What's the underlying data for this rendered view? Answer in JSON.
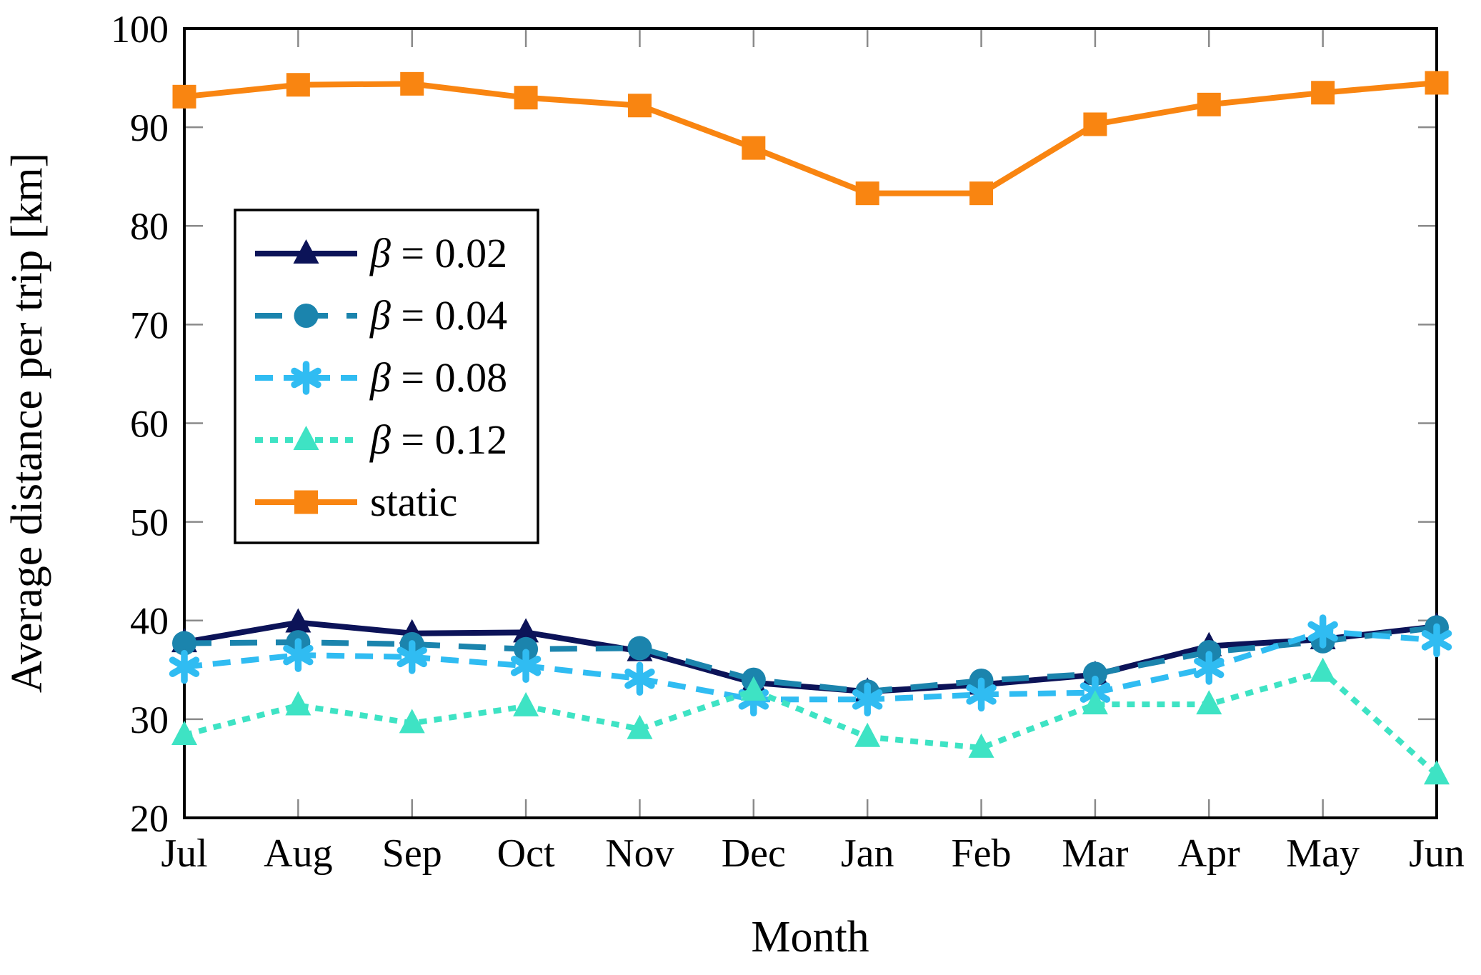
{
  "chart_data": {
    "type": "line",
    "title": "",
    "xlabel": "Month",
    "ylabel": "Average distance per trip [km]",
    "categories": [
      "Jul",
      "Aug",
      "Sep",
      "Oct",
      "Nov",
      "Dec",
      "Jan",
      "Feb",
      "Mar",
      "Apr",
      "May",
      "Jun"
    ],
    "ylim": [
      20,
      100
    ],
    "yticks": [
      20,
      30,
      40,
      50,
      60,
      70,
      80,
      90,
      100
    ],
    "grid": false,
    "legend_position": "upper-left-inside",
    "series": [
      {
        "name": "β = 0.02",
        "color": "#0c1358",
        "line_style": "solid",
        "marker": "triangle",
        "values": [
          37.8,
          39.8,
          38.7,
          38.8,
          36.9,
          33.7,
          32.8,
          33.5,
          34.5,
          37.4,
          38.1,
          39.4
        ]
      },
      {
        "name": "β = 0.04",
        "color": "#1b84ad",
        "line_style": "long-dash",
        "marker": "circle",
        "values": [
          37.7,
          37.8,
          37.6,
          37.1,
          37.2,
          34.0,
          32.8,
          33.9,
          34.6,
          36.8,
          37.9,
          39.3
        ]
      },
      {
        "name": "β = 0.08",
        "color": "#30bcf2",
        "line_style": "dash",
        "marker": "asterisk",
        "values": [
          35.3,
          36.5,
          36.3,
          35.4,
          34.1,
          32.0,
          32.0,
          32.5,
          32.7,
          35.2,
          38.9,
          38.0
        ]
      },
      {
        "name": "β = 0.12",
        "color": "#3ee3c4",
        "line_style": "dotted",
        "marker": "triangle",
        "values": [
          28.4,
          31.4,
          29.6,
          31.3,
          29.0,
          32.9,
          28.2,
          27.1,
          31.5,
          31.5,
          34.8,
          24.4
        ]
      },
      {
        "name": "static",
        "color": "#f98511",
        "line_style": "solid",
        "marker": "square",
        "values": [
          93.1,
          94.3,
          94.4,
          93.0,
          92.2,
          87.9,
          83.3,
          83.3,
          90.3,
          92.3,
          93.5,
          94.5
        ]
      }
    ]
  },
  "styles": {
    "frame_color": "#000000",
    "tick_color": "#8a8a8a",
    "background": "#ffffff"
  }
}
